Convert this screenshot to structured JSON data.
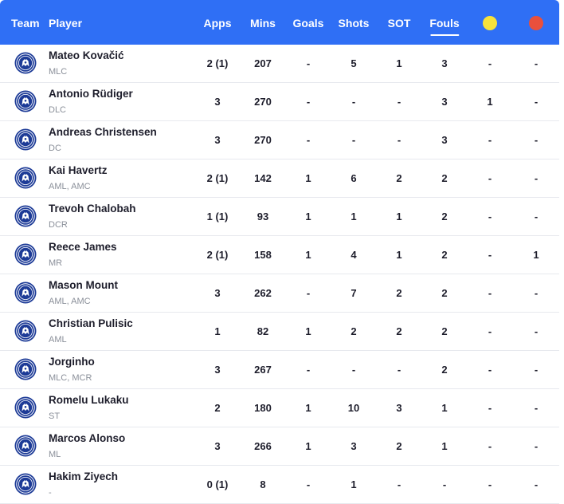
{
  "header": {
    "team": "Team",
    "player": "Player",
    "apps": "Apps",
    "mins": "Mins",
    "goals": "Goals",
    "shots": "Shots",
    "sot": "SOT",
    "fouls": "Fouls",
    "yellow_icon": "yellow-card-icon",
    "red_icon": "red-card-icon",
    "sorted_column": "fouls"
  },
  "colors": {
    "header_bg": "#2f6ff5",
    "yellow_card": "#f7e23a",
    "red_card": "#e9503c",
    "badge_blue": "#1d3b97"
  },
  "team_icon": "chelsea-crest-icon",
  "rows": [
    {
      "name": "Mateo Kovačić",
      "pos": "MLC",
      "apps": "2 (1)",
      "mins": "207",
      "goals": "-",
      "shots": "5",
      "sot": "1",
      "fouls": "3",
      "yellow": "-",
      "red": "-"
    },
    {
      "name": "Antonio Rüdiger",
      "pos": "DLC",
      "apps": "3",
      "mins": "270",
      "goals": "-",
      "shots": "-",
      "sot": "-",
      "fouls": "3",
      "yellow": "1",
      "red": "-"
    },
    {
      "name": "Andreas Christensen",
      "pos": "DC",
      "apps": "3",
      "mins": "270",
      "goals": "-",
      "shots": "-",
      "sot": "-",
      "fouls": "3",
      "yellow": "-",
      "red": "-"
    },
    {
      "name": "Kai Havertz",
      "pos": "AML, AMC",
      "apps": "2 (1)",
      "mins": "142",
      "goals": "1",
      "shots": "6",
      "sot": "2",
      "fouls": "2",
      "yellow": "-",
      "red": "-"
    },
    {
      "name": "Trevoh Chalobah",
      "pos": "DCR",
      "apps": "1 (1)",
      "mins": "93",
      "goals": "1",
      "shots": "1",
      "sot": "1",
      "fouls": "2",
      "yellow": "-",
      "red": "-"
    },
    {
      "name": "Reece James",
      "pos": "MR",
      "apps": "2 (1)",
      "mins": "158",
      "goals": "1",
      "shots": "4",
      "sot": "1",
      "fouls": "2",
      "yellow": "-",
      "red": "1"
    },
    {
      "name": "Mason Mount",
      "pos": "AML, AMC",
      "apps": "3",
      "mins": "262",
      "goals": "-",
      "shots": "7",
      "sot": "2",
      "fouls": "2",
      "yellow": "-",
      "red": "-"
    },
    {
      "name": "Christian Pulisic",
      "pos": "AML",
      "apps": "1",
      "mins": "82",
      "goals": "1",
      "shots": "2",
      "sot": "2",
      "fouls": "2",
      "yellow": "-",
      "red": "-"
    },
    {
      "name": "Jorginho",
      "pos": "MLC, MCR",
      "apps": "3",
      "mins": "267",
      "goals": "-",
      "shots": "-",
      "sot": "-",
      "fouls": "2",
      "yellow": "-",
      "red": "-"
    },
    {
      "name": "Romelu Lukaku",
      "pos": "ST",
      "apps": "2",
      "mins": "180",
      "goals": "1",
      "shots": "10",
      "sot": "3",
      "fouls": "1",
      "yellow": "-",
      "red": "-"
    },
    {
      "name": "Marcos Alonso",
      "pos": "ML",
      "apps": "3",
      "mins": "266",
      "goals": "1",
      "shots": "3",
      "sot": "2",
      "fouls": "1",
      "yellow": "-",
      "red": "-"
    },
    {
      "name": "Hakim Ziyech",
      "pos": "-",
      "apps": "0 (1)",
      "mins": "8",
      "goals": "-",
      "shots": "1",
      "sot": "-",
      "fouls": "-",
      "yellow": "-",
      "red": "-"
    }
  ]
}
